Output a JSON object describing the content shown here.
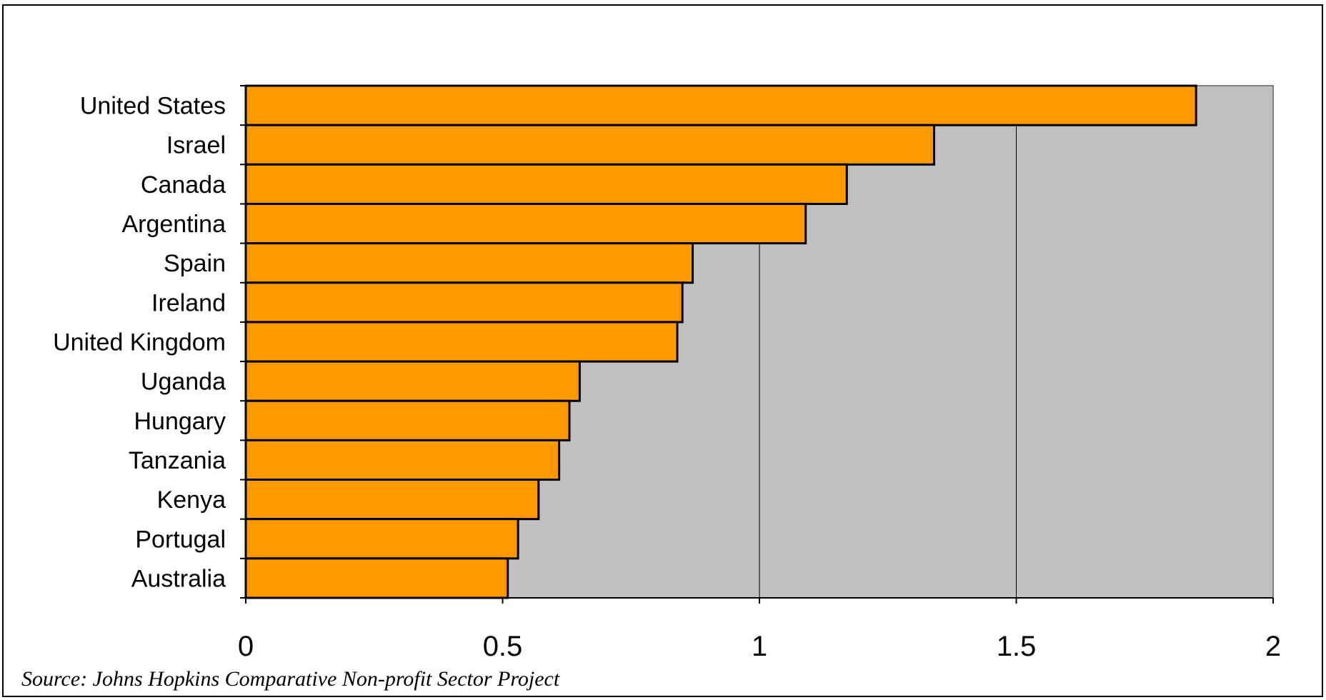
{
  "chart_data": {
    "type": "bar",
    "orientation": "horizontal",
    "categories": [
      "United States",
      "Israel",
      "Canada",
      "Argentina",
      "Spain",
      "Ireland",
      "United Kingdom",
      "Uganda",
      "Hungary",
      "Tanzania",
      "Kenya",
      "Portugal",
      "Australia"
    ],
    "values": [
      1.85,
      1.34,
      1.17,
      1.09,
      0.87,
      0.85,
      0.84,
      0.65,
      0.63,
      0.61,
      0.57,
      0.53,
      0.51
    ],
    "xlim": [
      0,
      2
    ],
    "xticks": [
      0,
      0.5,
      1,
      1.5,
      2
    ],
    "xtick_labels": [
      "0",
      "0.5",
      "1",
      "1.5",
      "2"
    ],
    "grid": "vertical",
    "legend": "none",
    "colors": {
      "bar_fill": "#FF9900",
      "bar_edge": "#000000",
      "plot_background": "#C0C0C0",
      "gridline": "#000000"
    }
  },
  "footer": {
    "source": "Source: Johns Hopkins Comparative Non-profit Sector Project"
  }
}
